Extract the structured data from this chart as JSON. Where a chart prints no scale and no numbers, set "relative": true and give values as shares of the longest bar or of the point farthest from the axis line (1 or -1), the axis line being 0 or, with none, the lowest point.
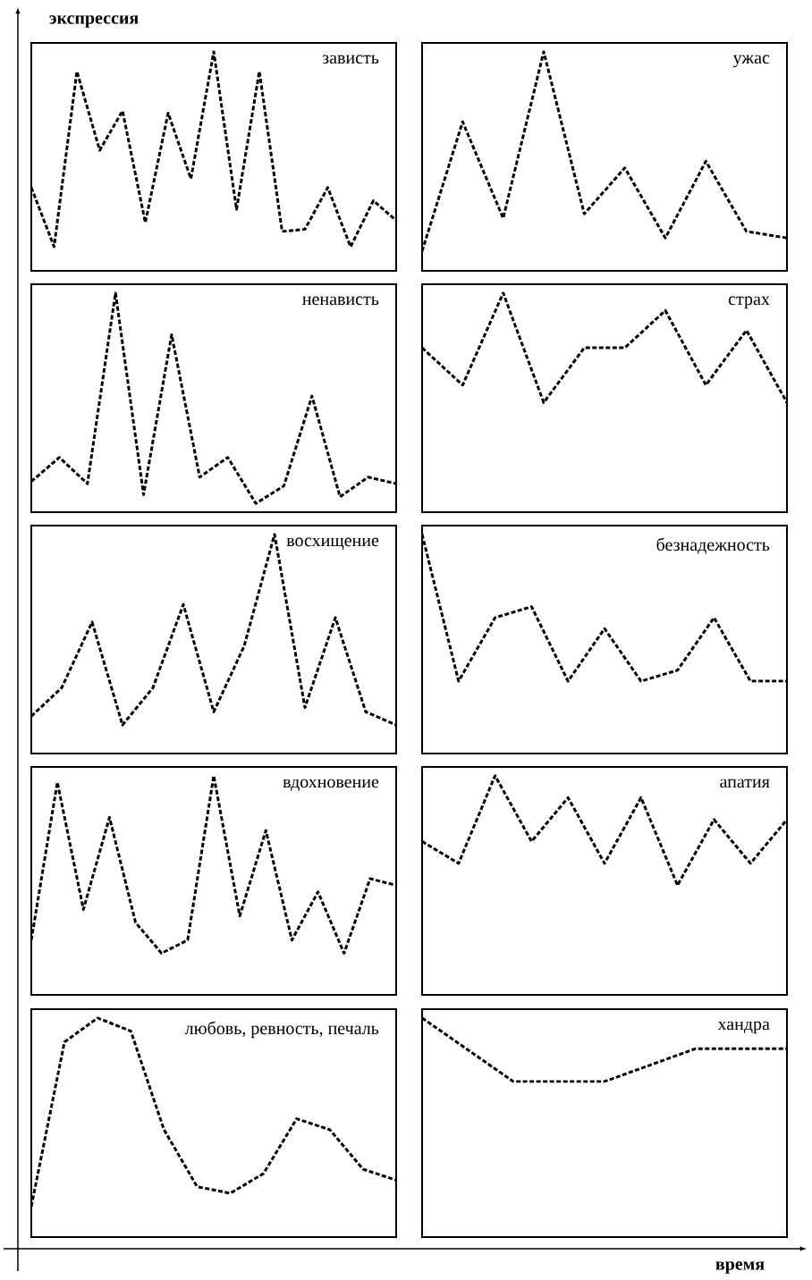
{
  "chart_data": [
    {
      "type": "line",
      "relative": true,
      "title": "зависть",
      "line_style": "dashed",
      "color": "#000000",
      "categories": [
        null,
        null,
        null,
        null,
        null,
        null,
        null,
        null,
        null,
        null,
        null,
        null,
        null,
        null,
        null,
        null,
        null
      ],
      "values": [
        0.38,
        0.11,
        0.91,
        0.55,
        0.73,
        0.22,
        0.72,
        0.42,
        1,
        0.28,
        0.91,
        0.18,
        0.19,
        0.38,
        0.11,
        0.32,
        0.23
      ]
    },
    {
      "type": "line",
      "relative": true,
      "title": "ужас",
      "line_style": "dashed",
      "color": "#000000",
      "categories": [
        null,
        null,
        null,
        null,
        null,
        null,
        null,
        null,
        null,
        null
      ],
      "values": [
        0.09,
        0.68,
        0.24,
        1,
        0.26,
        0.47,
        0.15,
        0.5,
        0.18,
        0.15
      ]
    },
    {
      "type": "line",
      "relative": true,
      "title": "ненависть",
      "line_style": "dashed",
      "color": "#000000",
      "categories": [
        null,
        null,
        null,
        null,
        null,
        null,
        null,
        null,
        null,
        null,
        null,
        null,
        null,
        null
      ],
      "values": [
        0.14,
        0.25,
        0.13,
        1,
        0.08,
        0.81,
        0.16,
        0.25,
        0.04,
        0.12,
        0.53,
        0.07,
        0.16,
        0.13
      ]
    },
    {
      "type": "line",
      "relative": true,
      "title": "страх",
      "line_style": "dashed",
      "color": "#000000",
      "categories": [
        null,
        null,
        null,
        null,
        null,
        null,
        null,
        null,
        null,
        null
      ],
      "values": [
        0.75,
        0.58,
        1,
        0.5,
        0.75,
        0.75,
        0.92,
        0.58,
        0.83,
        0.5
      ]
    },
    {
      "type": "line",
      "relative": true,
      "title": "восхищение",
      "line_style": "dashed",
      "color": "#000000",
      "categories": [
        null,
        null,
        null,
        null,
        null,
        null,
        null,
        null,
        null,
        null,
        null,
        null,
        null
      ],
      "values": [
        0.17,
        0.3,
        0.6,
        0.13,
        0.3,
        0.68,
        0.19,
        0.49,
        1,
        0.21,
        0.62,
        0.19,
        0.13
      ]
    },
    {
      "type": "line",
      "relative": true,
      "title": "безнадежность",
      "line_style": "dashed",
      "color": "#000000",
      "categories": [
        null,
        null,
        null,
        null,
        null,
        null,
        null,
        null,
        null,
        null,
        null
      ],
      "values": [
        1,
        0.33,
        0.62,
        0.67,
        0.33,
        0.57,
        0.33,
        0.38,
        0.62,
        0.33,
        0.33
      ]
    },
    {
      "type": "line",
      "relative": true,
      "title": "вдохновение",
      "line_style": "dashed",
      "color": "#000000",
      "categories": [
        null,
        null,
        null,
        null,
        null,
        null,
        null,
        null,
        null,
        null,
        null,
        null,
        null,
        null,
        null
      ],
      "values": [
        0.25,
        0.97,
        0.39,
        0.81,
        0.33,
        0.19,
        0.25,
        1,
        0.36,
        0.75,
        0.25,
        0.47,
        0.19,
        0.53,
        0.5
      ]
    },
    {
      "type": "line",
      "relative": true,
      "title": "апатия",
      "line_style": "dashed",
      "color": "#000000",
      "categories": [
        null,
        null,
        null,
        null,
        null,
        null,
        null,
        null,
        null,
        null,
        null
      ],
      "values": [
        0.7,
        0.6,
        1,
        0.7,
        0.9,
        0.6,
        0.9,
        0.5,
        0.8,
        0.6,
        0.8
      ]
    },
    {
      "type": "line",
      "relative": true,
      "title": "любовь, ревность, печаль",
      "line_style": "dashed",
      "color": "#000000",
      "categories": [
        null,
        null,
        null,
        null,
        null,
        null,
        null,
        null,
        null,
        null,
        null,
        null
      ],
      "values": [
        0.14,
        0.89,
        1,
        0.94,
        0.49,
        0.23,
        0.2,
        0.29,
        0.54,
        0.49,
        0.31,
        0.26
      ]
    },
    {
      "type": "line",
      "relative": true,
      "title": "хандра",
      "line_style": "dashed",
      "color": "#000000",
      "categories": [
        null,
        null,
        null,
        null,
        null
      ],
      "values": [
        1,
        0.71,
        0.71,
        0.86,
        0.86
      ]
    },
    {
      "type": "other",
      "xlabel": "время",
      "ylabel": "экспрессия"
    }
  ]
}
